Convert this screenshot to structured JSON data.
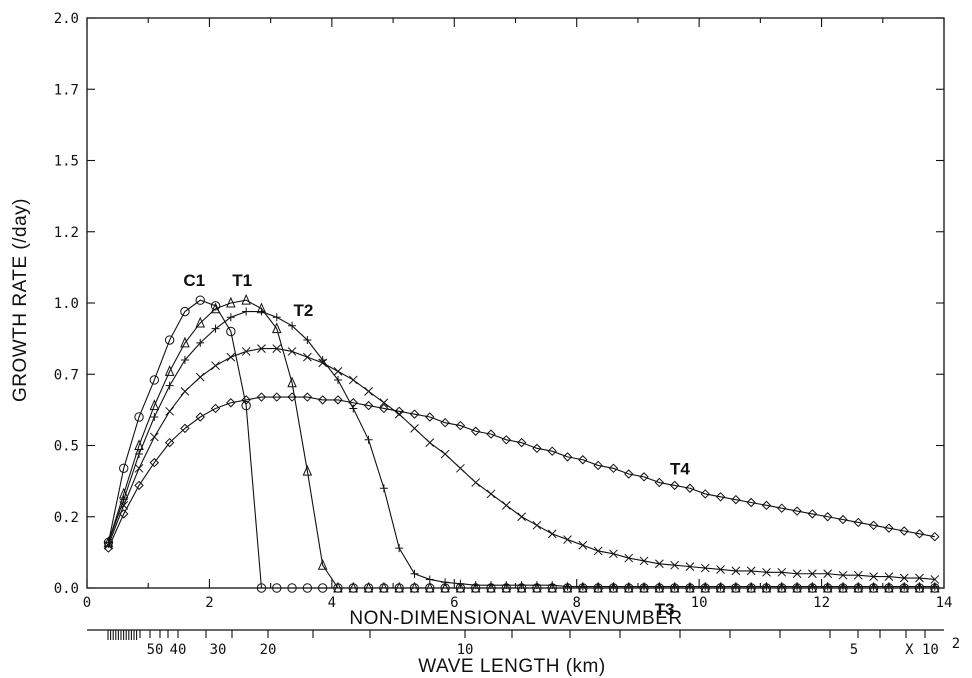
{
  "chart_data": {
    "type": "line",
    "xlabel": "NON-DIMENSIONAL WAVENUMBER",
    "ylabel": "GROWTH RATE  (/day)",
    "xlim": [
      0,
      14
    ],
    "ylim": [
      0,
      2.0
    ],
    "x_ticks": [
      "0",
      "2",
      "4",
      "6",
      "8",
      "10",
      "12",
      "14"
    ],
    "y_ticks": [
      "0.0",
      "0.2",
      "0.5",
      "0.7",
      "1.0",
      "1.2",
      "1.5",
      "1.7",
      "2.0"
    ],
    "y_tick_values": [
      0.0,
      0.25,
      0.5,
      0.75,
      1.0,
      1.25,
      1.5,
      1.75,
      2.0
    ],
    "secondary_axis": {
      "label": "WAVE LENGTH (km)",
      "tick_labels": [
        "50",
        "40",
        "30",
        "20",
        "10",
        "5",
        "X 10",
        "2"
      ]
    },
    "series": [
      {
        "name": "C1",
        "marker": "circle",
        "x": [
          0.35,
          0.6,
          0.85,
          1.1,
          1.35,
          1.6,
          1.85,
          2.1,
          2.35,
          2.6,
          2.85,
          3.1,
          3.35,
          3.6,
          3.85,
          4.1,
          4.35,
          4.6,
          4.85,
          5.1,
          5.35,
          5.6,
          5.85,
          6.1,
          6.35,
          6.6,
          6.85,
          7.1,
          7.35,
          7.6,
          7.85,
          8.1,
          8.35,
          8.6,
          8.85,
          9.1,
          9.35,
          9.6,
          9.85,
          10.1,
          10.35,
          10.6,
          10.85,
          11.1,
          11.35,
          11.6,
          11.85,
          12.1,
          12.35,
          12.6,
          12.85,
          13.1,
          13.35,
          13.6,
          13.85
        ],
        "y": [
          0.16,
          0.42,
          0.6,
          0.73,
          0.87,
          0.97,
          1.01,
          0.99,
          0.9,
          0.64,
          0.0,
          0.0,
          0.0,
          0.0,
          0.0,
          0.0,
          0.0,
          0.0,
          0.0,
          0.0,
          0.0,
          0.0,
          0.0,
          0.0,
          0.0,
          0.0,
          0.0,
          0.0,
          0.0,
          0.0,
          0.0,
          0.0,
          0.0,
          0.0,
          0.0,
          0.0,
          0.0,
          0.0,
          0.0,
          0.0,
          0.0,
          0.0,
          0.0,
          0.0,
          0.0,
          0.0,
          0.0,
          0.0,
          0.0,
          0.0,
          0.0,
          0.0,
          0.0,
          0.0,
          0.0
        ]
      },
      {
        "name": "T1",
        "marker": "triangle",
        "x": [
          0.35,
          0.6,
          0.85,
          1.1,
          1.35,
          1.6,
          1.85,
          2.1,
          2.35,
          2.6,
          2.85,
          3.1,
          3.35,
          3.6,
          3.85,
          4.1,
          4.35,
          4.6,
          4.85,
          5.1,
          5.35,
          5.6,
          5.85,
          6.1,
          6.35,
          6.6,
          6.85,
          7.1,
          7.35,
          7.6,
          7.85,
          8.1,
          8.35,
          8.6,
          8.85,
          9.1,
          9.35,
          9.6,
          9.85,
          10.1,
          10.35,
          10.6,
          10.85,
          11.1,
          11.35,
          11.6,
          11.85,
          12.1,
          12.35,
          12.6,
          12.85,
          13.1,
          13.35,
          13.6,
          13.85
        ],
        "y": [
          0.16,
          0.33,
          0.5,
          0.64,
          0.76,
          0.86,
          0.93,
          0.98,
          1.0,
          1.01,
          0.98,
          0.91,
          0.72,
          0.41,
          0.08,
          0.0,
          0.0,
          0.0,
          0.0,
          0.0,
          0.0,
          0.0,
          0.0,
          0.0,
          0.0,
          0.0,
          0.0,
          0.0,
          0.0,
          0.0,
          0.0,
          0.0,
          0.0,
          0.0,
          0.0,
          0.0,
          0.0,
          0.0,
          0.0,
          0.0,
          0.0,
          0.0,
          0.0,
          0.0,
          0.0,
          0.0,
          0.0,
          0.0,
          0.0,
          0.0,
          0.0,
          0.0,
          0.0,
          0.0,
          0.0
        ]
      },
      {
        "name": "T2",
        "marker": "plus",
        "x": [
          0.35,
          0.6,
          0.85,
          1.1,
          1.35,
          1.6,
          1.85,
          2.1,
          2.35,
          2.6,
          2.85,
          3.1,
          3.35,
          3.6,
          3.85,
          4.1,
          4.35,
          4.6,
          4.85,
          5.1,
          5.35,
          5.6,
          5.85,
          6.1,
          6.35,
          6.6,
          6.85,
          7.1,
          7.35,
          7.6,
          7.85,
          8.1,
          8.35,
          8.6,
          8.85,
          9.1,
          9.35,
          9.6,
          9.85,
          10.1,
          10.35,
          10.6,
          10.85,
          11.1,
          11.35,
          11.6,
          11.85,
          12.1,
          12.35,
          12.6,
          12.85,
          13.1,
          13.35,
          13.6,
          13.85
        ],
        "y": [
          0.16,
          0.31,
          0.47,
          0.6,
          0.71,
          0.8,
          0.86,
          0.91,
          0.95,
          0.97,
          0.97,
          0.95,
          0.92,
          0.87,
          0.8,
          0.73,
          0.63,
          0.52,
          0.35,
          0.14,
          0.05,
          0.03,
          0.02,
          0.015,
          0.01,
          0.01,
          0.01,
          0.01,
          0.01,
          0.01,
          0.005,
          0.005,
          0.005,
          0.005,
          0.005,
          0.005,
          0.005,
          0.005,
          0.005,
          0.005,
          0.005,
          0.005,
          0.005,
          0.005,
          0.005,
          0.005,
          0.005,
          0.005,
          0.005,
          0.005,
          0.005,
          0.005,
          0.005,
          0.005,
          0.005
        ]
      },
      {
        "name": "T3",
        "marker": "x",
        "x": [
          0.35,
          0.6,
          0.85,
          1.1,
          1.35,
          1.6,
          1.85,
          2.1,
          2.35,
          2.6,
          2.85,
          3.1,
          3.35,
          3.6,
          3.85,
          4.1,
          4.35,
          4.6,
          4.85,
          5.1,
          5.35,
          5.6,
          5.85,
          6.1,
          6.35,
          6.6,
          6.85,
          7.1,
          7.35,
          7.6,
          7.85,
          8.1,
          8.35,
          8.6,
          8.85,
          9.1,
          9.35,
          9.6,
          9.85,
          10.1,
          10.35,
          10.6,
          10.85,
          11.1,
          11.35,
          11.6,
          11.85,
          12.1,
          12.35,
          12.6,
          12.85,
          13.1,
          13.35,
          13.6,
          13.85
        ],
        "y": [
          0.15,
          0.29,
          0.42,
          0.53,
          0.62,
          0.69,
          0.74,
          0.78,
          0.81,
          0.83,
          0.84,
          0.84,
          0.83,
          0.81,
          0.79,
          0.76,
          0.73,
          0.69,
          0.65,
          0.61,
          0.56,
          0.51,
          0.47,
          0.42,
          0.37,
          0.33,
          0.29,
          0.25,
          0.22,
          0.19,
          0.17,
          0.15,
          0.13,
          0.12,
          0.105,
          0.095,
          0.085,
          0.08,
          0.075,
          0.07,
          0.065,
          0.06,
          0.06,
          0.055,
          0.055,
          0.05,
          0.05,
          0.05,
          0.045,
          0.045,
          0.04,
          0.04,
          0.035,
          0.035,
          0.03
        ]
      },
      {
        "name": "T4",
        "marker": "diamond",
        "x": [
          0.35,
          0.6,
          0.85,
          1.1,
          1.35,
          1.6,
          1.85,
          2.1,
          2.35,
          2.6,
          2.85,
          3.1,
          3.35,
          3.6,
          3.85,
          4.1,
          4.35,
          4.6,
          4.85,
          5.1,
          5.35,
          5.6,
          5.85,
          6.1,
          6.35,
          6.6,
          6.85,
          7.1,
          7.35,
          7.6,
          7.85,
          8.1,
          8.35,
          8.6,
          8.85,
          9.1,
          9.35,
          9.6,
          9.85,
          10.1,
          10.35,
          10.6,
          10.85,
          11.1,
          11.35,
          11.6,
          11.85,
          12.1,
          12.35,
          12.6,
          12.85,
          13.1,
          13.35,
          13.6,
          13.85
        ],
        "y": [
          0.14,
          0.26,
          0.36,
          0.44,
          0.51,
          0.56,
          0.6,
          0.63,
          0.65,
          0.66,
          0.67,
          0.67,
          0.67,
          0.67,
          0.66,
          0.66,
          0.65,
          0.64,
          0.63,
          0.62,
          0.61,
          0.6,
          0.58,
          0.57,
          0.55,
          0.54,
          0.52,
          0.51,
          0.49,
          0.48,
          0.46,
          0.45,
          0.43,
          0.42,
          0.4,
          0.39,
          0.37,
          0.36,
          0.35,
          0.33,
          0.32,
          0.31,
          0.3,
          0.29,
          0.28,
          0.27,
          0.26,
          0.25,
          0.24,
          0.23,
          0.22,
          0.21,
          0.2,
          0.19,
          0.18
        ]
      }
    ],
    "annotations": [
      {
        "text": "C1",
        "series": "C1"
      },
      {
        "text": "T1",
        "series": "T1"
      },
      {
        "text": "T2",
        "series": "T2"
      },
      {
        "text": "T3",
        "series": "T3"
      },
      {
        "text": "T4",
        "series": "T4"
      }
    ],
    "grid": false,
    "legend": "none"
  }
}
